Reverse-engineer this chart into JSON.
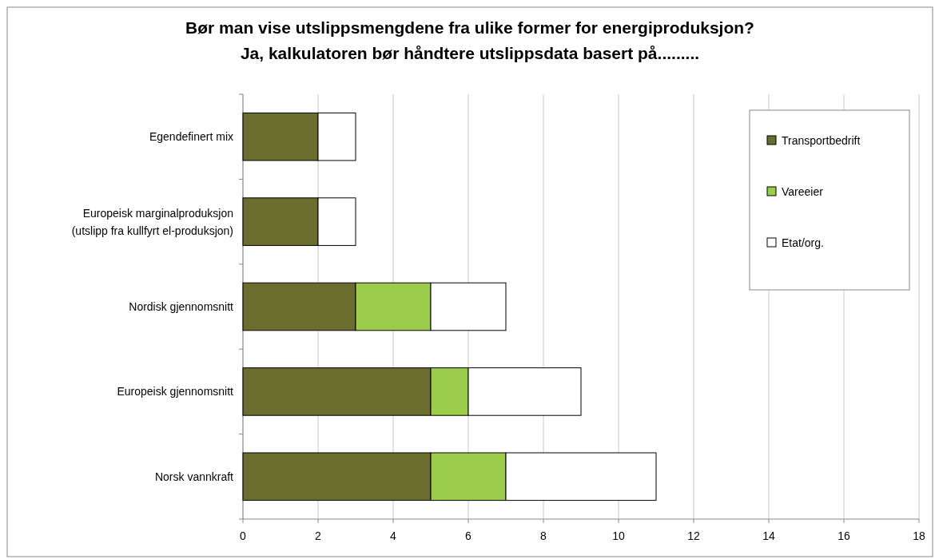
{
  "chart_data": {
    "type": "bar",
    "orientation": "horizontal",
    "stacked": true,
    "title": "Bør man vise utslippsmengdene fra ulike former for energiproduksjon?",
    "subtitle": "Ja, kalkulatoren bør håndtere utslippsdata basert på.........",
    "categories": [
      "Egendefinert mix",
      "Europeisk marginalproduksjon\n(utslipp fra kullfyrt el-produksjon)",
      "Nordisk gjennomsnitt",
      "Europeisk gjennomsnitt",
      "Norsk vannkraft"
    ],
    "series": [
      {
        "name": "Transportbedrift",
        "color": "#6b6d2e",
        "values": [
          2,
          2,
          3,
          5,
          5
        ]
      },
      {
        "name": "Vareeier",
        "color": "#9ccc4c",
        "values": [
          0,
          0,
          2,
          1,
          2
        ]
      },
      {
        "name": "Etat/org.",
        "color": "#ffffff",
        "values": [
          1,
          1,
          2,
          3,
          4
        ]
      }
    ],
    "xlim": [
      0,
      18
    ],
    "xticks": [
      0,
      2,
      4,
      6,
      8,
      10,
      12,
      14,
      16,
      18
    ],
    "grid": "x",
    "legend": "top right"
  }
}
